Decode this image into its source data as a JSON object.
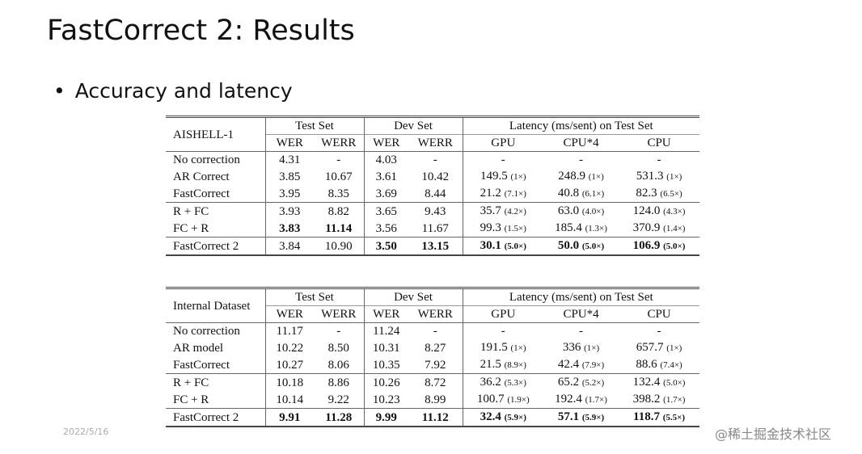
{
  "slide": {
    "title": "FastCorrect 2: Results",
    "bullet": "Accuracy and latency",
    "date": "2022/5/16",
    "watermark": "@稀土掘金技术社区",
    "tables": [
      {
        "corner": "AISHELL-1",
        "group_headers": [
          "Test Set",
          "Dev Set",
          "Latency (ms/sent) on Test Set"
        ],
        "sub_headers": [
          "WER",
          "WERR",
          "WER",
          "WERR",
          "GPU",
          "CPU*4",
          "CPU"
        ],
        "row_groups": [
          [
            {
              "name": "No correction",
              "cells": [
                "4.31",
                "-",
                "4.03",
                "-",
                "-",
                "-",
                "-"
              ]
            },
            {
              "name": "AR Correct",
              "cells": [
                "3.85",
                "10.67",
                "3.61",
                "10.42",
                {
                  "text": "149.5",
                  "note": "(1×)"
                },
                {
                  "text": "248.9",
                  "note": "(1×)"
                },
                {
                  "text": "531.3",
                  "note": "(1×)"
                }
              ]
            },
            {
              "name": "FastCorrect",
              "cells": [
                "3.95",
                "8.35",
                "3.69",
                "8.44",
                {
                  "text": "21.2",
                  "note": "(7.1×)"
                },
                {
                  "text": "40.8",
                  "note": "(6.1×)"
                },
                {
                  "text": "82.3",
                  "note": "(6.5×)"
                }
              ]
            }
          ],
          [
            {
              "name": "R + FC",
              "cells": [
                "3.93",
                "8.82",
                "3.65",
                "9.43",
                {
                  "text": "35.7",
                  "note": "(4.2×)"
                },
                {
                  "text": "63.0",
                  "note": "(4.0×)"
                },
                {
                  "text": "124.0",
                  "note": "(4.3×)"
                }
              ]
            },
            {
              "name": "FC + R",
              "cells": [
                {
                  "text": "3.83",
                  "bold": true
                },
                {
                  "text": "11.14",
                  "bold": true
                },
                "3.56",
                "11.67",
                {
                  "text": "99.3",
                  "note": "(1.5×)"
                },
                {
                  "text": "185.4",
                  "note": "(1.3×)"
                },
                {
                  "text": "370.9",
                  "note": "(1.4×)"
                }
              ]
            }
          ],
          [
            {
              "name": "FastCorrect 2",
              "cells": [
                "3.84",
                "10.90",
                {
                  "text": "3.50",
                  "bold": true
                },
                {
                  "text": "13.15",
                  "bold": true
                },
                {
                  "text": "30.1",
                  "note": "(5.0×)",
                  "bold": true
                },
                {
                  "text": "50.0",
                  "note": "(5.0×)",
                  "bold": true
                },
                {
                  "text": "106.9",
                  "note": "(5.0×)",
                  "bold": true
                }
              ]
            }
          ]
        ]
      },
      {
        "corner": "Internal Dataset",
        "group_headers": [
          "Test Set",
          "Dev Set",
          "Latency (ms/sent) on Test Set"
        ],
        "sub_headers": [
          "WER",
          "WERR",
          "WER",
          "WERR",
          "GPU",
          "CPU*4",
          "CPU"
        ],
        "row_groups": [
          [
            {
              "name": "No correction",
              "cells": [
                "11.17",
                "-",
                "11.24",
                "-",
                "-",
                "-",
                "-"
              ]
            },
            {
              "name": "AR model",
              "cells": [
                "10.22",
                "8.50",
                "10.31",
                "8.27",
                {
                  "text": "191.5",
                  "note": "(1×)"
                },
                {
                  "text": "336",
                  "note": "(1×)"
                },
                {
                  "text": "657.7",
                  "note": "(1×)"
                }
              ]
            },
            {
              "name": "FastCorrect",
              "cells": [
                "10.27",
                "8.06",
                "10.35",
                "7.92",
                {
                  "text": "21.5",
                  "note": "(8.9×)"
                },
                {
                  "text": "42.4",
                  "note": "(7.9×)"
                },
                {
                  "text": "88.6",
                  "note": "(7.4×)"
                }
              ]
            }
          ],
          [
            {
              "name": "R + FC",
              "cells": [
                "10.18",
                "8.86",
                "10.26",
                "8.72",
                {
                  "text": "36.2",
                  "note": "(5.3×)"
                },
                {
                  "text": "65.2",
                  "note": "(5.2×)"
                },
                {
                  "text": "132.4",
                  "note": "(5.0×)"
                }
              ]
            },
            {
              "name": "FC + R",
              "cells": [
                "10.14",
                "9.22",
                "10.23",
                "8.99",
                {
                  "text": "100.7",
                  "note": "(1.9×)"
                },
                {
                  "text": "192.4",
                  "note": "(1.7×)"
                },
                {
                  "text": "398.2",
                  "note": "(1.7×)"
                }
              ]
            }
          ],
          [
            {
              "name": "FastCorrect 2",
              "cells": [
                {
                  "text": "9.91",
                  "bold": true
                },
                {
                  "text": "11.28",
                  "bold": true
                },
                {
                  "text": "9.99",
                  "bold": true
                },
                {
                  "text": "11.12",
                  "bold": true
                },
                {
                  "text": "32.4",
                  "note": "(5.9×)",
                  "bold": true
                },
                {
                  "text": "57.1",
                  "note": "(5.9×)",
                  "bold": true
                },
                {
                  "text": "118.7",
                  "note": "(5.5×)",
                  "bold": true
                }
              ]
            }
          ]
        ]
      }
    ]
  }
}
